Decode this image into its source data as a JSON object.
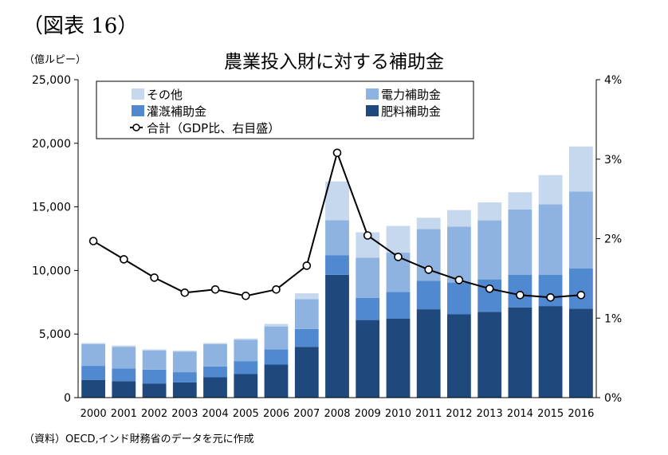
{
  "figure_label": "（図表 16）",
  "left_unit": "（億ルピー）",
  "source_note": "（資料）OECD,インド財務省のデータを元に作成",
  "colors": {
    "その他": "#c5d8ee",
    "電力補助金": "#8eb3e0",
    "灌漑補助金": "#5089d0",
    "肥料補助金": "#1f497d",
    "line": "#000000"
  },
  "chart_data": {
    "type": "bar",
    "stacked": true,
    "title": "農業投入財に対する補助金",
    "categories": [
      "2000",
      "2001",
      "2002",
      "2003",
      "2004",
      "2005",
      "2006",
      "2007",
      "2008",
      "2009",
      "2010",
      "2011",
      "2012",
      "2013",
      "2014",
      "2015",
      "2016"
    ],
    "series": [
      {
        "name": "肥料補助金",
        "axis": "left",
        "values": [
          1400,
          1300,
          1100,
          1200,
          1600,
          1850,
          2600,
          4000,
          9650,
          6100,
          6200,
          6950,
          6550,
          6750,
          7100,
          7200,
          7000
        ]
      },
      {
        "name": "灌漑補助金",
        "axis": "left",
        "values": [
          1100,
          1000,
          1100,
          800,
          850,
          1000,
          1200,
          1400,
          1550,
          1750,
          2100,
          2250,
          2500,
          2550,
          2550,
          2450,
          3150
        ]
      },
      {
        "name": "電力補助金",
        "axis": "left",
        "values": [
          1700,
          1700,
          1500,
          1600,
          1750,
          1700,
          1800,
          2350,
          2750,
          3150,
          3100,
          4050,
          4400,
          4650,
          5150,
          5550,
          6050
        ]
      },
      {
        "name": "その他",
        "axis": "left",
        "values": [
          100,
          100,
          100,
          100,
          100,
          100,
          200,
          450,
          3050,
          2000,
          2100,
          900,
          1300,
          1400,
          1350,
          2300,
          3550
        ]
      },
      {
        "name": "合計（GDP比、右目盛）",
        "type": "line",
        "axis": "right",
        "values": [
          1.97,
          1.74,
          1.51,
          1.32,
          1.36,
          1.28,
          1.36,
          1.66,
          3.08,
          2.04,
          1.77,
          1.61,
          1.48,
          1.37,
          1.29,
          1.26,
          1.29
        ]
      }
    ],
    "y_left": {
      "min": 0,
      "max": 25000,
      "ticks": [
        "0",
        "5,000",
        "10,000",
        "15,000",
        "20,000",
        "25,000"
      ]
    },
    "y_right": {
      "min": 0,
      "max": 4,
      "ticks": [
        "0%",
        "1%",
        "2%",
        "3%",
        "4%"
      ]
    },
    "legend": {
      "placement": "top-left, inside plot",
      "items": [
        "その他",
        "電力補助金",
        "灌漑補助金",
        "肥料補助金",
        "合計（GDP比、右目盛）"
      ]
    },
    "grid": false
  }
}
